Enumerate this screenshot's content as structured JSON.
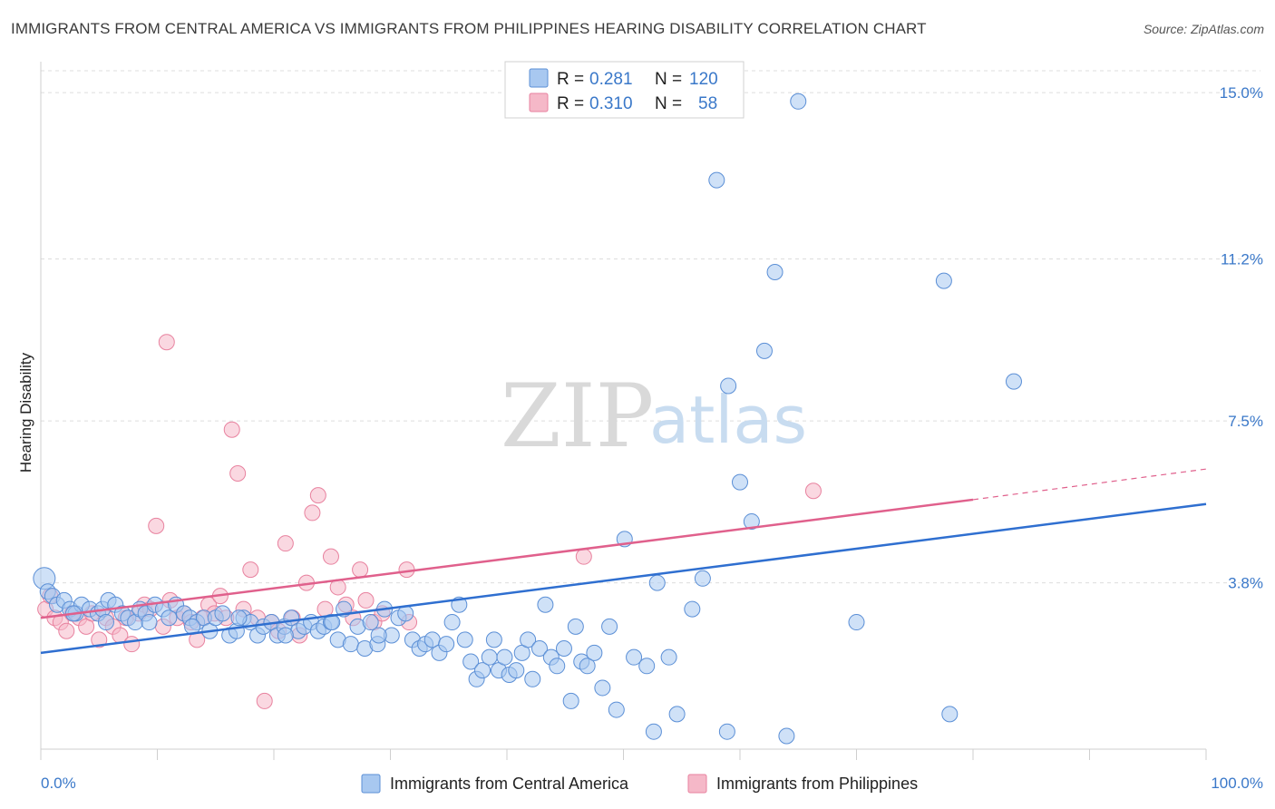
{
  "header": {
    "title": "IMMIGRANTS FROM CENTRAL AMERICA VS IMMIGRANTS FROM PHILIPPINES HEARING DISABILITY CORRELATION CHART",
    "source": "Source: ZipAtlas.com"
  },
  "watermark": {
    "zip": "ZIP",
    "atlas": "atlas"
  },
  "legend": {
    "blue": {
      "r_label": "R =",
      "r_value": "0.281",
      "n_label": "N =",
      "n_value": "120"
    },
    "pink": {
      "r_label": "R =",
      "r_value": "0.310",
      "n_label": "N =",
      "n_value": "58"
    }
  },
  "bottom_legend": {
    "blue": "Immigrants from Central America",
    "pink": "Immigrants from Philippines"
  },
  "colors": {
    "blue_fill": "#a8c8f0",
    "blue_stroke": "#5b8fd6",
    "blue_line": "#2f6fd0",
    "pink_fill": "#f5b8c8",
    "pink_stroke": "#e8829f",
    "pink_line": "#e0608c",
    "tick_text": "#3a78c9",
    "grid": "#dddddd"
  },
  "chart_data": {
    "type": "scatter",
    "title": "IMMIGRANTS FROM CENTRAL AMERICA VS IMMIGRANTS FROM PHILIPPINES HEARING DISABILITY CORRELATION CHART",
    "xlabel": "",
    "ylabel": "Hearing Disability",
    "xlim": [
      0,
      100
    ],
    "ylim": [
      0,
      15.5
    ],
    "x_tick_labels": [
      "0.0%",
      "100.0%"
    ],
    "y_ticks": [
      3.8,
      7.5,
      11.2,
      15.0
    ],
    "y_tick_labels": [
      "3.8%",
      "7.5%",
      "11.2%",
      "15.0%"
    ],
    "grid": true,
    "legend_position": "top-center",
    "series": [
      {
        "name": "Immigrants from Central America",
        "r": 0.281,
        "n": 120,
        "trend": {
          "x": [
            0,
            100
          ],
          "y": [
            2.2,
            5.6
          ]
        },
        "points": [
          [
            0.3,
            3.9
          ],
          [
            0.6,
            3.6
          ],
          [
            1.0,
            3.5
          ],
          [
            1.4,
            3.3
          ],
          [
            2.0,
            3.4
          ],
          [
            2.5,
            3.2
          ],
          [
            3.0,
            3.1
          ],
          [
            3.5,
            3.3
          ],
          [
            4.2,
            3.2
          ],
          [
            4.9,
            3.1
          ],
          [
            5.3,
            3.2
          ],
          [
            5.8,
            3.4
          ],
          [
            6.4,
            3.3
          ],
          [
            7.0,
            3.1
          ],
          [
            7.5,
            3.0
          ],
          [
            8.1,
            2.9
          ],
          [
            8.5,
            3.2
          ],
          [
            9.0,
            3.1
          ],
          [
            9.8,
            3.3
          ],
          [
            10.5,
            3.2
          ],
          [
            11.0,
            3.0
          ],
          [
            11.6,
            3.3
          ],
          [
            12.3,
            3.1
          ],
          [
            12.8,
            3.0
          ],
          [
            13.4,
            2.9
          ],
          [
            14.0,
            3.0
          ],
          [
            14.5,
            2.7
          ],
          [
            15.0,
            3.0
          ],
          [
            15.6,
            3.1
          ],
          [
            16.2,
            2.6
          ],
          [
            16.8,
            2.7
          ],
          [
            17.4,
            3.0
          ],
          [
            18.0,
            2.9
          ],
          [
            18.6,
            2.6
          ],
          [
            19.1,
            2.8
          ],
          [
            19.8,
            2.9
          ],
          [
            20.3,
            2.6
          ],
          [
            20.9,
            2.8
          ],
          [
            21.5,
            3.0
          ],
          [
            22.1,
            2.7
          ],
          [
            22.6,
            2.8
          ],
          [
            23.2,
            2.9
          ],
          [
            23.8,
            2.7
          ],
          [
            24.3,
            2.8
          ],
          [
            24.9,
            2.9
          ],
          [
            25.5,
            2.5
          ],
          [
            26.0,
            3.2
          ],
          [
            26.6,
            2.4
          ],
          [
            27.2,
            2.8
          ],
          [
            27.8,
            2.3
          ],
          [
            28.3,
            2.9
          ],
          [
            28.9,
            2.4
          ],
          [
            29.5,
            3.2
          ],
          [
            30.1,
            2.6
          ],
          [
            30.7,
            3.0
          ],
          [
            31.3,
            3.1
          ],
          [
            31.9,
            2.5
          ],
          [
            32.5,
            2.3
          ],
          [
            33.0,
            2.4
          ],
          [
            33.6,
            2.5
          ],
          [
            34.2,
            2.2
          ],
          [
            34.8,
            2.4
          ],
          [
            35.3,
            2.9
          ],
          [
            35.9,
            3.3
          ],
          [
            36.4,
            2.5
          ],
          [
            36.9,
            2.0
          ],
          [
            37.4,
            1.6
          ],
          [
            37.9,
            1.8
          ],
          [
            38.5,
            2.1
          ],
          [
            38.9,
            2.5
          ],
          [
            39.3,
            1.8
          ],
          [
            39.8,
            2.1
          ],
          [
            40.2,
            1.7
          ],
          [
            40.8,
            1.8
          ],
          [
            41.3,
            2.2
          ],
          [
            41.8,
            2.5
          ],
          [
            42.2,
            1.6
          ],
          [
            42.8,
            2.3
          ],
          [
            43.3,
            3.3
          ],
          [
            43.8,
            2.1
          ],
          [
            44.3,
            1.9
          ],
          [
            44.9,
            2.3
          ],
          [
            45.5,
            1.1
          ],
          [
            45.9,
            2.8
          ],
          [
            46.4,
            2.0
          ],
          [
            46.9,
            1.9
          ],
          [
            47.5,
            2.2
          ],
          [
            48.2,
            1.4
          ],
          [
            48.8,
            2.8
          ],
          [
            49.4,
            0.9
          ],
          [
            50.1,
            4.8
          ],
          [
            50.9,
            2.1
          ],
          [
            52.0,
            1.9
          ],
          [
            52.6,
            0.4
          ],
          [
            52.9,
            3.8
          ],
          [
            53.9,
            2.1
          ],
          [
            54.6,
            0.8
          ],
          [
            55.9,
            3.2
          ],
          [
            56.8,
            3.9
          ],
          [
            58.0,
            13.0
          ],
          [
            58.9,
            0.4
          ],
          [
            59.0,
            8.3
          ],
          [
            60.0,
            6.1
          ],
          [
            61.0,
            5.2
          ],
          [
            62.1,
            9.1
          ],
          [
            63.0,
            10.9
          ],
          [
            64.0,
            0.3
          ],
          [
            65.0,
            14.8
          ],
          [
            70.0,
            2.9
          ],
          [
            77.5,
            10.7
          ],
          [
            78.0,
            0.8
          ],
          [
            83.5,
            8.4
          ],
          [
            2.8,
            3.1
          ],
          [
            5.6,
            2.9
          ],
          [
            9.3,
            2.9
          ],
          [
            13.0,
            2.8
          ],
          [
            17.0,
            3.0
          ],
          [
            21.0,
            2.6
          ],
          [
            25.0,
            2.9
          ],
          [
            29.0,
            2.6
          ]
        ]
      },
      {
        "name": "Immigrants from Philippines",
        "r": 0.31,
        "n": 58,
        "trend": {
          "x": [
            0,
            80
          ],
          "y": [
            3.0,
            5.7
          ],
          "dashed_to": [
            100,
            6.4
          ]
        },
        "points": [
          [
            0.4,
            3.2
          ],
          [
            0.8,
            3.5
          ],
          [
            1.2,
            3.0
          ],
          [
            1.7,
            2.9
          ],
          [
            2.2,
            2.7
          ],
          [
            2.7,
            3.1
          ],
          [
            3.3,
            3.0
          ],
          [
            3.9,
            2.8
          ],
          [
            4.4,
            3.1
          ],
          [
            5.0,
            2.5
          ],
          [
            5.6,
            3.0
          ],
          [
            6.2,
            2.8
          ],
          [
            6.8,
            2.6
          ],
          [
            7.3,
            3.0
          ],
          [
            7.8,
            2.4
          ],
          [
            8.4,
            3.1
          ],
          [
            8.9,
            3.3
          ],
          [
            9.4,
            3.2
          ],
          [
            9.9,
            5.1
          ],
          [
            10.5,
            2.8
          ],
          [
            10.8,
            9.3
          ],
          [
            11.1,
            3.4
          ],
          [
            11.7,
            3.0
          ],
          [
            12.3,
            3.1
          ],
          [
            12.9,
            2.9
          ],
          [
            13.4,
            2.5
          ],
          [
            13.9,
            3.0
          ],
          [
            14.4,
            3.3
          ],
          [
            14.9,
            3.1
          ],
          [
            15.4,
            3.5
          ],
          [
            15.9,
            3.0
          ],
          [
            16.4,
            7.3
          ],
          [
            16.9,
            6.3
          ],
          [
            17.4,
            3.2
          ],
          [
            18.0,
            4.1
          ],
          [
            18.6,
            3.0
          ],
          [
            19.2,
            1.1
          ],
          [
            19.8,
            2.9
          ],
          [
            20.4,
            2.7
          ],
          [
            21.0,
            4.7
          ],
          [
            21.6,
            3.0
          ],
          [
            22.2,
            2.6
          ],
          [
            22.8,
            3.8
          ],
          [
            23.3,
            5.4
          ],
          [
            23.8,
            5.8
          ],
          [
            24.4,
            3.2
          ],
          [
            24.9,
            4.4
          ],
          [
            25.5,
            3.7
          ],
          [
            26.2,
            3.3
          ],
          [
            26.8,
            3.0
          ],
          [
            27.4,
            4.1
          ],
          [
            27.9,
            3.4
          ],
          [
            28.6,
            2.9
          ],
          [
            29.3,
            3.1
          ],
          [
            31.4,
            4.1
          ],
          [
            31.6,
            2.9
          ],
          [
            46.6,
            4.4
          ],
          [
            66.3,
            5.9
          ]
        ]
      }
    ]
  }
}
